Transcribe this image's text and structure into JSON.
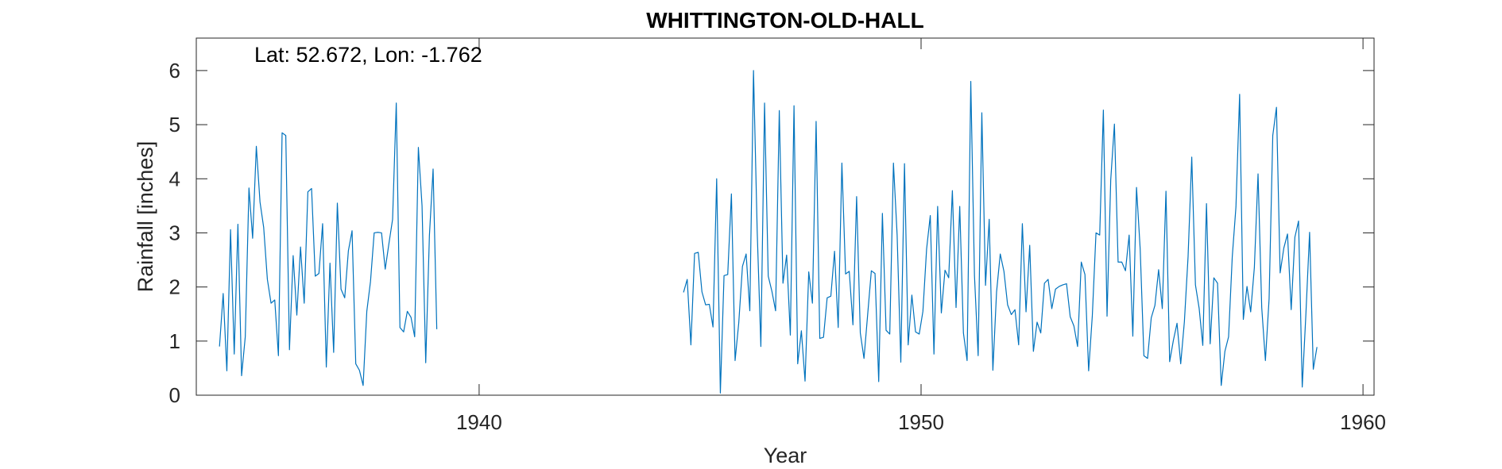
{
  "chart_data": {
    "type": "line",
    "title": "WHITTINGTON-OLD-HALL",
    "annotation": "Lat: 52.672, Lon: -1.762",
    "xlabel": "Year",
    "ylabel": "Rainfall [inches]",
    "xlim": [
      1933.6,
      1960.25
    ],
    "ylim": [
      0,
      6.6
    ],
    "xticks": [
      1940,
      1950,
      1960
    ],
    "xtick_labels": [
      "1940",
      "1950",
      "1960"
    ],
    "yticks": [
      0,
      1,
      2,
      3,
      4,
      5,
      6
    ],
    "ytick_labels": [
      "0",
      "1",
      "2",
      "3",
      "4",
      "5",
      "6"
    ],
    "grid": false,
    "line_color": "#0072BD",
    "series": [
      {
        "start_year": 1934.125,
        "values": [
          0.9,
          1.88,
          0.45,
          3.06,
          0.76,
          3.16,
          0.36,
          1.08,
          3.83,
          2.9,
          4.6,
          3.57,
          3.1,
          2.14,
          1.7,
          1.76,
          0.73,
          4.85,
          4.8,
          0.84,
          2.58,
          1.48,
          2.74,
          1.7,
          3.76,
          3.82,
          2.2,
          2.25,
          3.17,
          0.52,
          2.44,
          0.79,
          3.55,
          1.96,
          1.8,
          2.67,
          3.04,
          0.58,
          0.46,
          0.18,
          1.55,
          2.1,
          3.0,
          3.01,
          3.0,
          2.33,
          2.8,
          3.25,
          5.4,
          1.25,
          1.17,
          1.55,
          1.44,
          1.08,
          4.58,
          3.5,
          0.6,
          2.95,
          4.18,
          1.22
        ]
      },
      {
        "start_year": 1944.625,
        "values": [
          1.9,
          2.14,
          0.93,
          2.62,
          2.64,
          1.91,
          1.67,
          1.68,
          1.26,
          4.0,
          0.04,
          2.21,
          2.23,
          3.72,
          0.64,
          1.34,
          2.38,
          2.61,
          1.56,
          6.0,
          3.04,
          0.9,
          5.4,
          2.2,
          1.92,
          1.56,
          5.26,
          2.07,
          2.59,
          1.11,
          5.35,
          0.58,
          1.19,
          0.26,
          2.28,
          1.7,
          5.06,
          1.05,
          1.07,
          1.8,
          1.83,
          2.66,
          1.25,
          4.29,
          2.24,
          2.29,
          1.3,
          3.67,
          1.15,
          0.68,
          1.49,
          2.3,
          2.25,
          0.25,
          3.36,
          1.2,
          1.13,
          4.29,
          2.96,
          0.61,
          4.28,
          0.93,
          1.85,
          1.17,
          1.13,
          1.55,
          2.7,
          3.32,
          0.76,
          3.49,
          1.52,
          2.31,
          2.17,
          3.78,
          1.62,
          3.49,
          1.15,
          0.64,
          5.8,
          2.21,
          0.73,
          5.22,
          2.03,
          3.25,
          0.46,
          1.91,
          2.61,
          2.29,
          1.67,
          1.49,
          1.58,
          0.93,
          3.17,
          1.54,
          2.77,
          0.81,
          1.35,
          1.15,
          2.07,
          2.14,
          1.6,
          1.96,
          2.01,
          2.04,
          2.06,
          1.45,
          1.28,
          0.9,
          2.46,
          2.23,
          0.45,
          1.47,
          3.0,
          2.96,
          5.27,
          1.46,
          3.98,
          5.01,
          2.46,
          2.46,
          2.3,
          2.96,
          1.09,
          3.84,
          2.7,
          0.73,
          0.68,
          1.43,
          1.66,
          2.32,
          1.6,
          3.77,
          0.62,
          1.01,
          1.33,
          0.58,
          1.36,
          2.56,
          4.4,
          2.04,
          1.61,
          0.92,
          3.54,
          0.95,
          2.17,
          2.07,
          0.18,
          0.81,
          1.08,
          2.56,
          3.48,
          5.56,
          1.4,
          2.01,
          1.54,
          2.36,
          4.09,
          1.62,
          0.64,
          1.78,
          4.8,
          5.32,
          2.26,
          2.72,
          2.98,
          1.58,
          2.92,
          3.22,
          0.15,
          1.51,
          3.01,
          0.48,
          0.89
        ]
      }
    ]
  }
}
